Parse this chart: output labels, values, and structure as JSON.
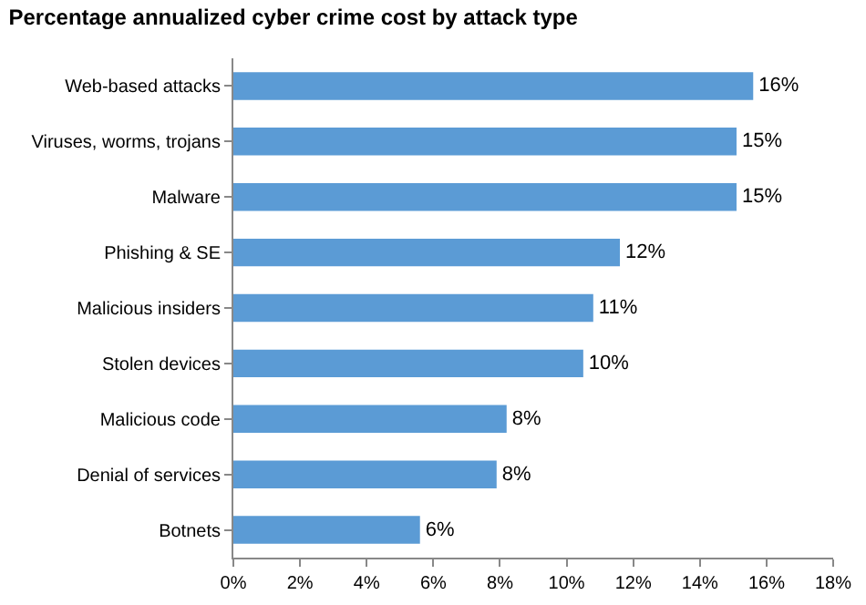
{
  "chart_data": {
    "type": "bar",
    "orientation": "horizontal",
    "title": "Percentage annualized cyber crime cost by attack type",
    "categories": [
      "Web-based attacks",
      "Viruses, worms, trojans",
      "Malware",
      "Phishing & SE",
      "Malicious insiders",
      "Stolen devices",
      "Malicious code",
      "Denial of services",
      "Botnets"
    ],
    "values": [
      15.6,
      15.1,
      15.1,
      11.6,
      10.8,
      10.5,
      8.2,
      7.9,
      5.6
    ],
    "value_labels": [
      "16%",
      "15%",
      "15%",
      "12%",
      "11%",
      "10%",
      "8%",
      "8%",
      "6%"
    ],
    "color": "#5b9bd5",
    "xlim": [
      0,
      18
    ],
    "xticks": [
      {
        "value": 0,
        "label": "0%"
      },
      {
        "value": 2,
        "label": "2%"
      },
      {
        "value": 4,
        "label": "4%"
      },
      {
        "value": 6,
        "label": "6%"
      },
      {
        "value": 8,
        "label": "8%"
      },
      {
        "value": 10,
        "label": "10%"
      },
      {
        "value": 12,
        "label": "12%"
      },
      {
        "value": 14,
        "label": "14%"
      },
      {
        "value": 16,
        "label": "16%"
      },
      {
        "value": 18,
        "label": "18%"
      }
    ],
    "grid": false
  }
}
